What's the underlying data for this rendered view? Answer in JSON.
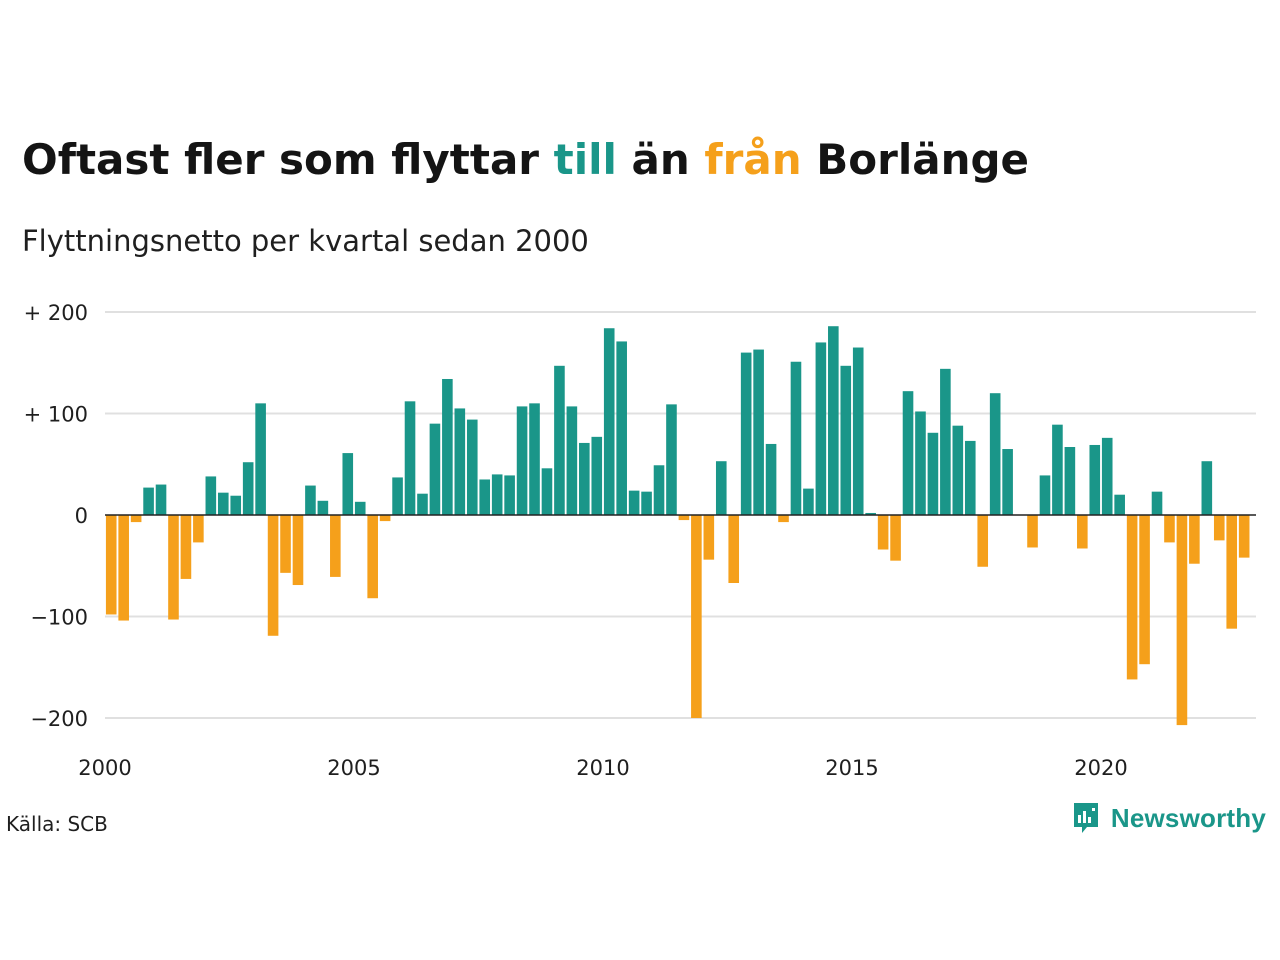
{
  "title": {
    "part1": "Oftast fler som flyttar ",
    "till": "till",
    "part2": " än ",
    "fran": "från",
    "part3": " Borlänge"
  },
  "subtitle": "Flyttningsnetto per kvartal sedan 2000",
  "source": "Källa: SCB",
  "brand": "Newsworthy",
  "colors": {
    "positive": "#1a9689",
    "negative": "#f5a01b",
    "grid": "#e0e0e0",
    "zero": "#222222"
  },
  "chart_data": {
    "type": "bar",
    "x_start": "2000 Q1",
    "frequency": "quarter",
    "ylim": [
      -210,
      200
    ],
    "yticks": [
      {
        "value": 200,
        "label": "+ 200"
      },
      {
        "value": 100,
        "label": "+ 100"
      },
      {
        "value": 0,
        "label": "0"
      },
      {
        "value": -100,
        "label": "−100"
      },
      {
        "value": -200,
        "label": "−200"
      }
    ],
    "xticks": [
      "2000",
      "2005",
      "2010",
      "2015",
      "2020"
    ],
    "values": [
      -98,
      -104,
      -7,
      27,
      30,
      -103,
      -63,
      -27,
      38,
      22,
      19,
      52,
      110,
      -119,
      -57,
      -69,
      29,
      14,
      -61,
      61,
      13,
      -82,
      -6,
      37,
      112,
      21,
      90,
      134,
      105,
      94,
      35,
      40,
      39,
      107,
      110,
      46,
      147,
      107,
      71,
      77,
      184,
      171,
      24,
      23,
      49,
      109,
      -5,
      -200,
      -44,
      53,
      -67,
      160,
      163,
      70,
      -7,
      151,
      26,
      170,
      186,
      147,
      165,
      2,
      -34,
      -45,
      122,
      102,
      81,
      144,
      88,
      73,
      -51,
      120,
      65,
      0,
      -32,
      39,
      89,
      67,
      -33,
      69,
      76,
      20,
      -162,
      -147,
      23,
      -27,
      -207,
      -48,
      53,
      -25,
      -112,
      -42
    ]
  }
}
